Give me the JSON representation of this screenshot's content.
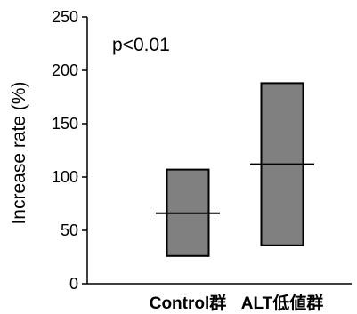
{
  "chart_data": {
    "type": "box",
    "categories": [
      "Control群",
      "ALT低値群"
    ],
    "series": [
      {
        "boxes": [
          {
            "category": "Control群",
            "low": 26,
            "high": 107,
            "median": 66
          },
          {
            "category": "ALT低値群",
            "low": 36,
            "high": 188,
            "median": 112
          }
        ]
      }
    ],
    "ylabel": "Increase rate (%)",
    "yticks": [
      0,
      50,
      100,
      150,
      200,
      250
    ],
    "ylim": [
      0,
      250
    ],
    "annotation": "p<0.01",
    "grid": false,
    "legend": "none",
    "colors": {
      "box_fill": "#808080",
      "box_stroke": "#000000",
      "median_line": "#000000",
      "axis": "#000000"
    }
  }
}
